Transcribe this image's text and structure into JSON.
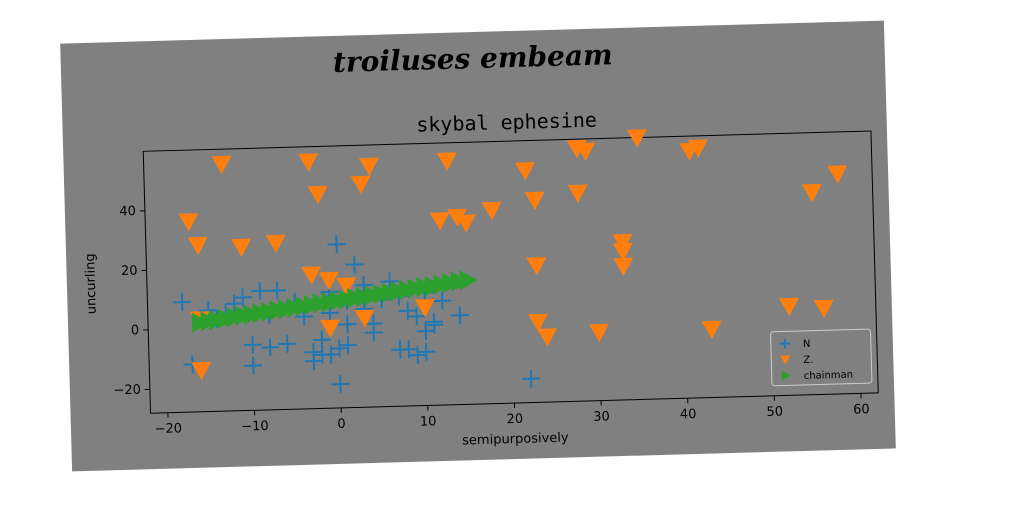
{
  "chart_data": {
    "type": "scatter",
    "suptitle": "troiluses embeam",
    "title": "skybal ephesine",
    "xlabel": "semipurposively",
    "ylabel": "uncurling",
    "xlim": [
      -22,
      62
    ],
    "ylim": [
      -28,
      60
    ],
    "xticks": [
      -20,
      -10,
      0,
      10,
      20,
      30,
      40,
      50,
      60
    ],
    "yticks": [
      -20,
      0,
      20,
      40
    ],
    "grid": false,
    "legend_position": "lower-right",
    "series": [
      {
        "name": "N",
        "marker": "plus",
        "color": "#1f77b4",
        "points": [
          [
            -18,
            9
          ],
          [
            -17,
            -12
          ],
          [
            -15,
            6
          ],
          [
            -14,
            3
          ],
          [
            -13,
            5
          ],
          [
            -12,
            8
          ],
          [
            -11,
            10
          ],
          [
            -10,
            -6
          ],
          [
            -10,
            -13
          ],
          [
            -9,
            12
          ],
          [
            -8,
            4
          ],
          [
            -8,
            -7
          ],
          [
            -7,
            12
          ],
          [
            -6,
            -6
          ],
          [
            -5,
            8
          ],
          [
            -4,
            3
          ],
          [
            -3,
            -12
          ],
          [
            -3,
            -9
          ],
          [
            -2,
            -5
          ],
          [
            -2,
            -10
          ],
          [
            -1,
            11
          ],
          [
            0,
            27
          ],
          [
            0,
            -8
          ],
          [
            -1,
            4
          ],
          [
            1,
            8
          ],
          [
            1,
            -7
          ],
          [
            1,
            0
          ],
          [
            -1,
            -10
          ],
          [
            2,
            20
          ],
          [
            3,
            13
          ],
          [
            3,
            5
          ],
          [
            4,
            0
          ],
          [
            4,
            -3
          ],
          [
            5,
            8
          ],
          [
            6,
            14
          ],
          [
            7,
            9
          ],
          [
            8,
            4
          ],
          [
            7,
            -9
          ],
          [
            8,
            -9
          ],
          [
            9,
            -11
          ],
          [
            10,
            -10
          ],
          [
            10,
            -3
          ],
          [
            11,
            -1
          ],
          [
            11,
            0
          ],
          [
            10,
            10
          ],
          [
            9,
            2
          ],
          [
            12,
            7
          ],
          [
            14,
            2
          ],
          [
            0,
            -20
          ],
          [
            22,
            -20
          ]
        ]
      },
      {
        "name": "Z.",
        "marker": "triangle-down",
        "color": "#ff7f0e",
        "points": [
          [
            -13,
            55
          ],
          [
            -17,
            36
          ],
          [
            -16,
            28
          ],
          [
            -11,
            27
          ],
          [
            -7,
            28
          ],
          [
            -16,
            3
          ],
          [
            -16,
            -14
          ],
          [
            -3,
            55
          ],
          [
            -2,
            44
          ],
          [
            3,
            47
          ],
          [
            4,
            53
          ],
          [
            -3,
            17
          ],
          [
            -1,
            15
          ],
          [
            1,
            13
          ],
          [
            3,
            2
          ],
          [
            -1,
            -1
          ],
          [
            10,
            5
          ],
          [
            12,
            34
          ],
          [
            14,
            35
          ],
          [
            15,
            33
          ],
          [
            13,
            54
          ],
          [
            18,
            37
          ],
          [
            22,
            50
          ],
          [
            23,
            40
          ],
          [
            28,
            57
          ],
          [
            29,
            56
          ],
          [
            28,
            42
          ],
          [
            35,
            60
          ],
          [
            41,
            55
          ],
          [
            42,
            56
          ],
          [
            33,
            25
          ],
          [
            33,
            22
          ],
          [
            33,
            17
          ],
          [
            23,
            18
          ],
          [
            23,
            -1
          ],
          [
            24,
            -6
          ],
          [
            30,
            -5
          ],
          [
            43,
            -5
          ],
          [
            52,
            2
          ],
          [
            55,
            40
          ],
          [
            58,
            46
          ],
          [
            56,
            1
          ]
        ]
      },
      {
        "name": "chainman",
        "marker": "triangle-right",
        "color": "#2ca02c",
        "points": [
          [
            -16,
            2
          ],
          [
            -15,
            2.4
          ],
          [
            -14,
            2.7
          ],
          [
            -13,
            3.1
          ],
          [
            -12,
            3.5
          ],
          [
            -11,
            3.9
          ],
          [
            -10,
            4.2
          ],
          [
            -9,
            4.6
          ],
          [
            -8,
            5
          ],
          [
            -7,
            5.4
          ],
          [
            -6,
            5.7
          ],
          [
            -5,
            6.1
          ],
          [
            -4,
            6.5
          ],
          [
            -3,
            6.9
          ],
          [
            -2,
            7.3
          ],
          [
            -1,
            7.6
          ],
          [
            0,
            8
          ],
          [
            1,
            8.4
          ],
          [
            2,
            8.8
          ],
          [
            3,
            9.1
          ],
          [
            4,
            9.5
          ],
          [
            5,
            9.9
          ],
          [
            6,
            10.3
          ],
          [
            7,
            10.6
          ],
          [
            8,
            11
          ],
          [
            9,
            11.4
          ],
          [
            10,
            11.8
          ],
          [
            11,
            12.1
          ],
          [
            12,
            12.5
          ],
          [
            13,
            12.9
          ],
          [
            14,
            13.3
          ],
          [
            15,
            13.7
          ]
        ]
      }
    ]
  }
}
